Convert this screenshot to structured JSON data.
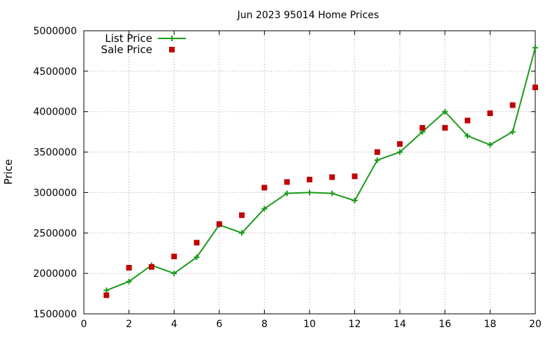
{
  "chart_data": {
    "type": "line",
    "title": "Jun 2023 95014 Home Prices",
    "xlabel": "",
    "ylabel": "Price",
    "xlim": [
      0,
      20
    ],
    "ylim": [
      1500000,
      5000000
    ],
    "x_ticks": [
      0,
      2,
      4,
      6,
      8,
      10,
      12,
      14,
      16,
      18,
      20
    ],
    "y_ticks": [
      1500000,
      2000000,
      2500000,
      3000000,
      3500000,
      4000000,
      4500000,
      5000000
    ],
    "grid": true,
    "legend_position": "top-left",
    "series": [
      {
        "name": "List Price",
        "style": "line-points",
        "color": "#1a9a1a",
        "x": [
          1,
          2,
          3,
          4,
          5,
          6,
          7,
          8,
          9,
          10,
          11,
          12,
          13,
          14,
          15,
          16,
          17,
          18,
          19,
          20
        ],
        "values": [
          1790000,
          1900000,
          2100000,
          2000000,
          2200000,
          2600000,
          2500000,
          2800000,
          2990000,
          3000000,
          2990000,
          2900000,
          3400000,
          3500000,
          3750000,
          4000000,
          3700000,
          3590000,
          3750000,
          4790000
        ]
      },
      {
        "name": "Sale Price",
        "style": "points",
        "color": "#c00000",
        "x": [
          1,
          2,
          3,
          4,
          5,
          6,
          7,
          8,
          9,
          10,
          11,
          12,
          13,
          14,
          15,
          16,
          17,
          18,
          19,
          20
        ],
        "values": [
          1730000,
          2070000,
          2080000,
          2210000,
          2380000,
          2610000,
          2720000,
          3060000,
          3130000,
          3160000,
          3190000,
          3200000,
          3500000,
          3600000,
          3800000,
          3800000,
          3890000,
          3980000,
          4080000,
          4300000
        ]
      }
    ]
  }
}
